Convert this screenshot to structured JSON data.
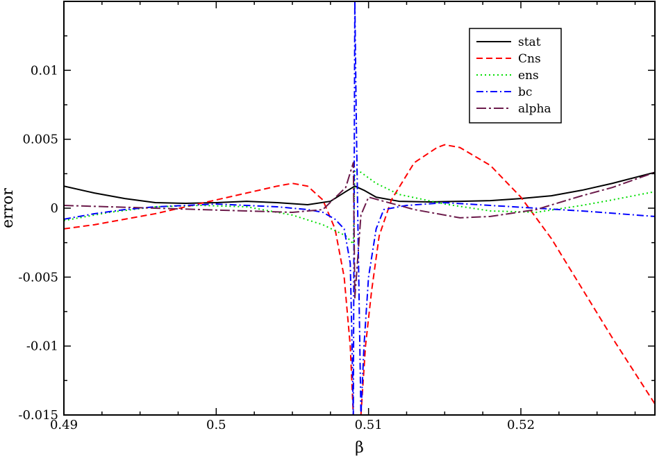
{
  "chart_data": {
    "type": "line",
    "xlabel": "β",
    "ylabel": "error",
    "xlim": [
      0.49,
      0.5288
    ],
    "ylim": [
      -0.015,
      0.015
    ],
    "xticks": [
      {
        "value": 0.49,
        "label": "0.49"
      },
      {
        "value": 0.5,
        "label": "0.5"
      },
      {
        "value": 0.51,
        "label": "0.51"
      },
      {
        "value": 0.52,
        "label": "0.52"
      }
    ],
    "yticks": [
      {
        "value": -0.015,
        "label": "-0.015"
      },
      {
        "value": -0.01,
        "label": "-0.01"
      },
      {
        "value": -0.005,
        "label": "-0.005"
      },
      {
        "value": 0,
        "label": "0"
      },
      {
        "value": 0.005,
        "label": "0.005"
      },
      {
        "value": 0.01,
        "label": "0.01"
      }
    ],
    "grid": false,
    "legend_position": "top-right",
    "series": [
      {
        "name": "stat",
        "color": "#000000",
        "dash": "solid",
        "points": [
          [
            0.49,
            0.0016
          ],
          [
            0.492,
            0.0011
          ],
          [
            0.494,
            0.0007
          ],
          [
            0.496,
            0.0004
          ],
          [
            0.498,
            0.00035
          ],
          [
            0.5,
            0.0004
          ],
          [
            0.502,
            0.0005
          ],
          [
            0.504,
            0.0004
          ],
          [
            0.506,
            0.00025
          ],
          [
            0.5075,
            0.0005
          ],
          [
            0.5085,
            0.0012
          ],
          [
            0.5091,
            0.0016
          ],
          [
            0.5097,
            0.0013
          ],
          [
            0.5105,
            0.0008
          ],
          [
            0.512,
            0.0005
          ],
          [
            0.514,
            0.00045
          ],
          [
            0.516,
            0.0005
          ],
          [
            0.518,
            0.00055
          ],
          [
            0.52,
            0.0007
          ],
          [
            0.522,
            0.0009
          ],
          [
            0.524,
            0.0013
          ],
          [
            0.526,
            0.0018
          ],
          [
            0.5288,
            0.0026
          ]
        ]
      },
      {
        "name": "Cns",
        "color": "#ff0000",
        "dash": "dashed",
        "points": [
          [
            0.49,
            -0.0015
          ],
          [
            0.492,
            -0.0012
          ],
          [
            0.494,
            -0.0008
          ],
          [
            0.496,
            -0.0004
          ],
          [
            0.498,
            0.0001
          ],
          [
            0.5,
            0.0006
          ],
          [
            0.502,
            0.0011
          ],
          [
            0.504,
            0.0016
          ],
          [
            0.505,
            0.0018
          ],
          [
            0.506,
            0.0016
          ],
          [
            0.507,
            0.0006
          ],
          [
            0.5078,
            -0.0015
          ],
          [
            0.5084,
            -0.005
          ],
          [
            0.5088,
            -0.01
          ],
          [
            0.509,
            -0.015
          ],
          [
            0.5095,
            -0.015
          ],
          [
            0.5098,
            -0.01
          ],
          [
            0.5102,
            -0.006
          ],
          [
            0.5107,
            -0.002
          ],
          [
            0.5115,
            0.0006
          ],
          [
            0.513,
            0.0033
          ],
          [
            0.5145,
            0.0044
          ],
          [
            0.515,
            0.0046
          ],
          [
            0.516,
            0.0044
          ],
          [
            0.518,
            0.0031
          ],
          [
            0.52,
            0.0008
          ],
          [
            0.522,
            -0.0022
          ],
          [
            0.524,
            -0.0058
          ],
          [
            0.526,
            -0.0094
          ],
          [
            0.5288,
            -0.0142
          ]
        ]
      },
      {
        "name": "ens",
        "color": "#00dd00",
        "dash": "dotted",
        "points": [
          [
            0.49,
            -0.0009
          ],
          [
            0.493,
            -0.0003
          ],
          [
            0.496,
            0.0001
          ],
          [
            0.499,
            0.0002
          ],
          [
            0.502,
            0.0001
          ],
          [
            0.505,
            -0.0005
          ],
          [
            0.507,
            -0.0012
          ],
          [
            0.5085,
            -0.002
          ],
          [
            0.509,
            -0.0026
          ],
          [
            0.5091,
            0.0028
          ],
          [
            0.5095,
            0.0026
          ],
          [
            0.5105,
            0.0018
          ],
          [
            0.512,
            0.001
          ],
          [
            0.515,
            0.0003
          ],
          [
            0.518,
            -0.0002
          ],
          [
            0.521,
            -0.0003
          ],
          [
            0.524,
            0.0002
          ],
          [
            0.526,
            0.0006
          ],
          [
            0.5288,
            0.0012
          ]
        ]
      },
      {
        "name": "bc",
        "color": "#0000ff",
        "dash": "dashdot",
        "points": [
          [
            0.49,
            -0.0008
          ],
          [
            0.492,
            -0.0004
          ],
          [
            0.494,
            -0.0001
          ],
          [
            0.496,
            0.0001
          ],
          [
            0.498,
            0.0002
          ],
          [
            0.5,
            0.0003
          ],
          [
            0.502,
            0.0002
          ],
          [
            0.504,
            0.0001
          ],
          [
            0.506,
            -0.0001
          ],
          [
            0.507,
            -0.0003
          ],
          [
            0.5078,
            -0.0008
          ],
          [
            0.5084,
            -0.0015
          ],
          [
            0.5088,
            -0.004
          ],
          [
            0.5089,
            -0.009
          ],
          [
            0.509,
            -0.015
          ],
          [
            0.5091,
            0.015
          ],
          [
            0.5092,
            0.006
          ],
          [
            0.5095,
            -0.015
          ],
          [
            0.5097,
            -0.01
          ],
          [
            0.51,
            -0.005
          ],
          [
            0.5105,
            -0.0015
          ],
          [
            0.511,
            -0.0001
          ],
          [
            0.5125,
            0.0002
          ],
          [
            0.515,
            0.0004
          ],
          [
            0.518,
            0.0002
          ],
          [
            0.521,
            0
          ],
          [
            0.524,
            -0.0002
          ],
          [
            0.5288,
            -0.0006
          ]
        ]
      },
      {
        "name": "alpha",
        "color": "#6b1a4a",
        "dash": "dashdotlong",
        "points": [
          [
            0.49,
            0.0002
          ],
          [
            0.493,
            0.0001
          ],
          [
            0.496,
            0
          ],
          [
            0.499,
            -0.0001
          ],
          [
            0.502,
            -0.0002
          ],
          [
            0.505,
            -0.0003
          ],
          [
            0.507,
            -0.0001
          ],
          [
            0.5085,
            0.0015
          ],
          [
            0.509,
            0.0033
          ],
          [
            0.5091,
            -0.0065
          ],
          [
            0.5095,
            -0.0005
          ],
          [
            0.51,
            0.0008
          ],
          [
            0.511,
            0.0005
          ],
          [
            0.513,
            -0.0001
          ],
          [
            0.516,
            -0.0007
          ],
          [
            0.518,
            -0.0006
          ],
          [
            0.521,
            -0.0001
          ],
          [
            0.524,
            0.0009
          ],
          [
            0.526,
            0.0015
          ],
          [
            0.5288,
            0.0026
          ]
        ]
      }
    ]
  }
}
